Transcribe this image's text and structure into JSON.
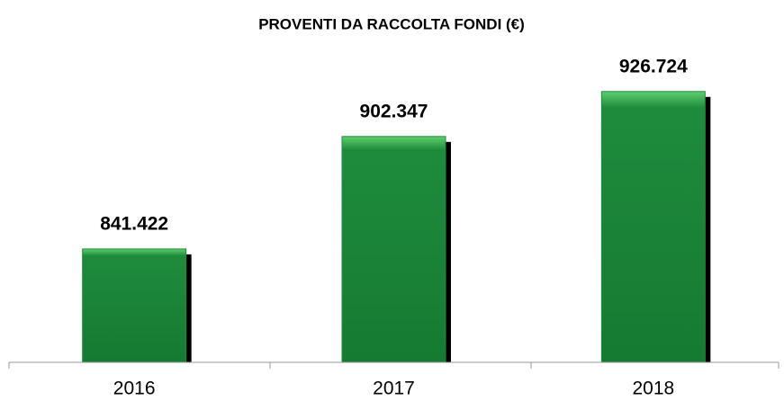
{
  "chart_data": {
    "type": "bar",
    "title": "PROVENTI DA RACCOLTA FONDI (€)",
    "categories": [
      "2016",
      "2017",
      "2018"
    ],
    "values": [
      841422,
      902347,
      926724
    ],
    "value_labels": [
      "841.422",
      "902.347",
      "926.724"
    ],
    "color": "#1e8b3c",
    "ylim": [
      780000,
      950000
    ]
  }
}
